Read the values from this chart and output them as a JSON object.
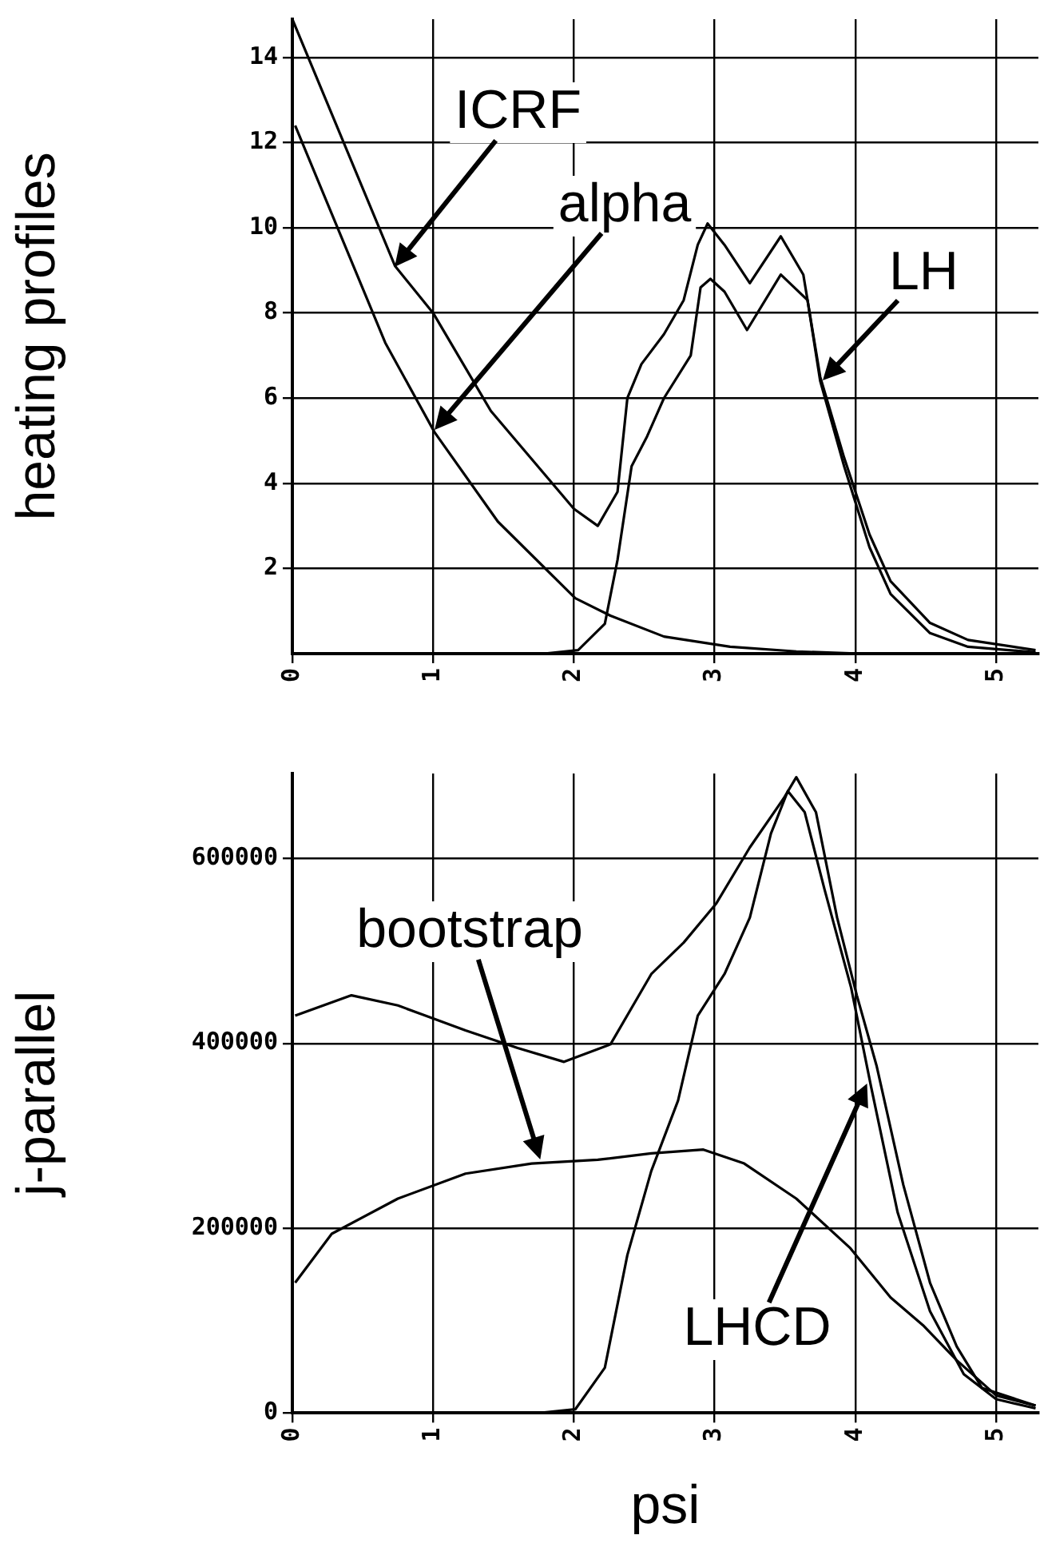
{
  "chart_data": [
    {
      "type": "line",
      "ylabel": "heating profiles",
      "xlim": [
        0,
        5.3
      ],
      "xticks": [
        0,
        1,
        2,
        3,
        4,
        5
      ],
      "ylim": [
        0,
        14.9
      ],
      "yticks": [
        2,
        4,
        6,
        8,
        10,
        12,
        14
      ],
      "grid": true,
      "legend": false,
      "marker": "none",
      "line_style": "solid",
      "annotations": [
        {
          "text": "ICRF",
          "x": 0.73,
          "y": 9.1
        },
        "alpha",
        {
          "text": "LH",
          "x": 3.77,
          "y": 6.4
        }
      ],
      "series": [
        {
          "color": "#000000",
          "x": [
            0,
            0.73,
            1,
            1.41,
            2,
            2.17,
            2.31,
            2.38,
            2.48,
            2.64,
            2.78,
            2.88,
            2.95,
            3.07,
            3.25,
            3.47,
            3.63,
            3.75,
            3.92,
            4.1,
            4.25,
            4.53,
            4.8,
            5.28
          ],
          "values": [
            14.9,
            9.1,
            8,
            5.7,
            3.4,
            3,
            3.8,
            6,
            6.8,
            7.5,
            8.3,
            9.6,
            10.1,
            9.6,
            8.7,
            9.8,
            8.9,
            6.5,
            4.6,
            2.8,
            1.7,
            0.72,
            0.32,
            0.08
          ]
        },
        {
          "color": "#000000",
          "x": [
            0,
            1.8,
            2.03,
            2.22,
            2.31,
            2.41,
            2.52,
            2.64,
            2.83,
            2.9,
            2.97,
            3.07,
            3.23,
            3.47,
            3.66,
            3.75,
            3.92,
            4.1,
            4.25,
            4.53,
            4.8,
            5.28
          ],
          "values": [
            0,
            0,
            0.08,
            0.7,
            2.2,
            4.4,
            5.1,
            6,
            7,
            8.6,
            8.8,
            8.5,
            7.6,
            8.9,
            8.3,
            6.4,
            4.4,
            2.5,
            1.4,
            0.48,
            0.16,
            0.03
          ]
        },
        {
          "color": "#000000",
          "x": [
            0.02,
            0.66,
            1.01,
            1.46,
            2.01,
            2.26,
            2.64,
            3.11,
            3.58,
            4,
            5.28
          ],
          "values": [
            12.4,
            7.3,
            5.2,
            3.1,
            1.3,
            0.89,
            0.4,
            0.16,
            0.05,
            0,
            0
          ]
        }
      ]
    },
    {
      "type": "line",
      "xlabel": "psi",
      "ylabel": "j-parallel",
      "xlim": [
        0,
        5.3
      ],
      "xticks": [
        0,
        1,
        2,
        3,
        4,
        5
      ],
      "ylim": [
        0,
        692000
      ],
      "yticks": [
        0,
        200000,
        400000,
        600000
      ],
      "grid": true,
      "legend": false,
      "marker": "none",
      "line_style": "solid",
      "annotations": [
        "bootstrap",
        "LHCD"
      ],
      "series": [
        {
          "color": "#000000",
          "x": [
            0.02,
            0.42,
            0.75,
            1.23,
            1.6,
            1.93,
            2.26,
            2.55,
            2.78,
            3.01,
            3.25,
            3.49,
            3.58,
            3.72,
            3.87,
            4.01,
            4.15,
            4.34,
            4.53,
            4.72,
            4.9,
            5.28
          ],
          "values": [
            430000,
            452000,
            441000,
            414000,
            395000,
            380000,
            399000,
            475000,
            509000,
            551000,
            612000,
            665000,
            688000,
            650000,
            536000,
            452000,
            376000,
            247000,
            141000,
            72000,
            27000,
            8000
          ]
        },
        {
          "color": "#000000",
          "x": [
            1.75,
            2.01,
            2.22,
            2.38,
            2.55,
            2.74,
            2.88,
            3.07,
            3.25,
            3.4,
            3.52,
            3.64,
            3.78,
            3.97,
            4.11,
            4.3,
            4.53,
            4.77,
            5,
            5.28
          ],
          "values": [
            0,
            4000,
            49000,
            171000,
            262000,
            338000,
            430000,
            475000,
            536000,
            627000,
            673000,
            650000,
            567000,
            460000,
            354000,
            217000,
            110000,
            42000,
            15000,
            5000
          ]
        },
        {
          "color": "#000000",
          "x": [
            0.02,
            0.28,
            0.75,
            1.23,
            1.7,
            2.17,
            2.55,
            2.92,
            3.21,
            3.58,
            3.96,
            4.25,
            4.48,
            4.72,
            5,
            5.28
          ],
          "values": [
            141000,
            194000,
            232000,
            259000,
            270000,
            274000,
            281000,
            285000,
            270000,
            232000,
            179000,
            125000,
            95000,
            57000,
            19000,
            8000
          ]
        }
      ]
    }
  ]
}
